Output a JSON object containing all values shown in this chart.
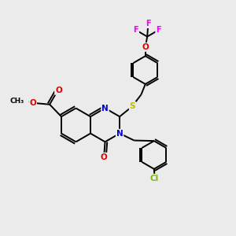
{
  "background_color": "#ebebeb",
  "bond_color": "#000000",
  "atom_colors": {
    "N": "#0000cc",
    "O": "#dd0000",
    "S": "#bbbb00",
    "Cl": "#77bb00",
    "F": "#ee00ee"
  },
  "line_width": 1.4,
  "font_size": 7.5,
  "figsize": [
    3.0,
    3.0
  ],
  "dpi": 100,
  "ring_r": 0.72,
  "ph_r": 0.6
}
